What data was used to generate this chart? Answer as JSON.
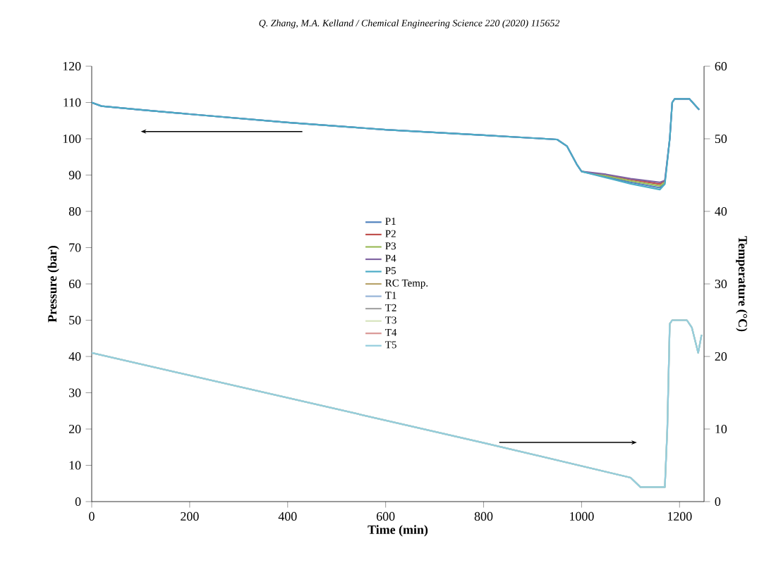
{
  "chart_data": {
    "type": "line",
    "annotations": [
      "Q. Zhang, M.A. Kelland / Chemical Engineering Science 220 (2020) 115652"
    ],
    "xlabel": "Time (min)",
    "ylabel": "Pressure (bar)",
    "y2label": "Temperature (°C)",
    "xlim": [
      0,
      1250
    ],
    "xticks": [
      0,
      200,
      400,
      600,
      800,
      1000,
      1200
    ],
    "ylim": [
      0,
      120
    ],
    "yticks": [
      0,
      10,
      20,
      30,
      40,
      50,
      60,
      70,
      80,
      90,
      100,
      110,
      120
    ],
    "y2lim": [
      0,
      60
    ],
    "y2ticks": [
      0,
      10,
      20,
      30,
      40,
      50,
      60
    ],
    "legend": "center",
    "grid": false,
    "marker": "none",
    "line_style": "solid",
    "series": [
      {
        "name": "P1",
        "color": "#4f81bd",
        "x": [
          0,
          20,
          100,
          200,
          400,
          600,
          800,
          950,
          970,
          990,
          1000,
          1050,
          1100,
          1160,
          1170,
          1180,
          1185,
          1190,
          1220,
          1240
        ],
        "values": [
          110,
          109,
          108,
          106.8,
          104.5,
          102.5,
          101,
          99.8,
          98,
          93,
          91,
          89.5,
          88,
          86.5,
          88,
          100,
          110,
          111,
          111,
          108
        ]
      },
      {
        "name": "P2",
        "color": "#c0504d",
        "x": [
          1050,
          1100,
          1160,
          1170
        ],
        "values": [
          90,
          88.8,
          87.5,
          88.5
        ]
      },
      {
        "name": "P3",
        "color": "#9bbb59",
        "x": [
          1000,
          1050,
          1100,
          1160,
          1170
        ],
        "values": [
          91,
          89.8,
          88.4,
          87,
          88
        ]
      },
      {
        "name": "P4",
        "color": "#8064a2",
        "x": [
          0,
          20,
          100,
          200,
          400,
          600,
          800,
          950,
          970,
          990,
          1000,
          1050,
          1100,
          1160,
          1170,
          1180,
          1185,
          1190,
          1220,
          1240
        ],
        "values": [
          110,
          109,
          108,
          106.8,
          104.5,
          102.5,
          101,
          99.8,
          98,
          93,
          91,
          90.2,
          89,
          88,
          88.5,
          100,
          110,
          111,
          111,
          108
        ]
      },
      {
        "name": "P5",
        "color": "#4bacc6",
        "x": [
          0,
          20,
          100,
          200,
          400,
          600,
          800,
          950,
          970,
          990,
          1000,
          1050,
          1100,
          1160,
          1170,
          1180,
          1185,
          1190,
          1220,
          1240
        ],
        "values": [
          110,
          109,
          108,
          106.8,
          104.5,
          102.5,
          101,
          99.8,
          98,
          93,
          91,
          89.3,
          87.6,
          86,
          87.5,
          100,
          110,
          111,
          111,
          108
        ]
      },
      {
        "name": "RC Temp.",
        "color": "#b7a36a",
        "axis": "y2"
      },
      {
        "name": "T1",
        "color": "#95b3d7",
        "axis": "y2",
        "x": [
          0,
          400,
          800,
          1100,
          1120,
          1170,
          1175,
          1180,
          1185,
          1215,
          1225,
          1238,
          1245
        ],
        "values": [
          20.5,
          14.3,
          8.1,
          3.3,
          2,
          2,
          10,
          24.5,
          25,
          25,
          24,
          20.5,
          23
        ]
      },
      {
        "name": "T2",
        "color": "#a5a5a5",
        "axis": "y2",
        "x": [
          0,
          400,
          800,
          1100,
          1120,
          1170,
          1175,
          1180,
          1185,
          1215,
          1225,
          1238,
          1245
        ],
        "values": [
          20.5,
          14.3,
          8.1,
          3.3,
          2,
          2,
          10,
          24.5,
          25,
          25,
          24,
          20.5,
          23
        ]
      },
      {
        "name": "T3",
        "color": "#d7e4bd",
        "axis": "y2",
        "x": [
          0,
          400,
          800,
          1100,
          1120,
          1170,
          1175,
          1180,
          1185,
          1215,
          1225,
          1238,
          1245
        ],
        "values": [
          20.5,
          14.3,
          8.1,
          3.3,
          2,
          2,
          10,
          24.5,
          25,
          25,
          24,
          20.5,
          23
        ]
      },
      {
        "name": "T4",
        "color": "#d99694",
        "axis": "y2"
      },
      {
        "name": "T5",
        "color": "#93cddd",
        "axis": "y2",
        "x": [
          0,
          400,
          800,
          1100,
          1120,
          1170,
          1175,
          1180,
          1185,
          1215,
          1225,
          1238,
          1245
        ],
        "values": [
          20.5,
          14.3,
          8.1,
          3.3,
          2,
          2,
          10,
          24.5,
          25,
          25,
          24,
          20.5,
          23
        ]
      }
    ]
  }
}
